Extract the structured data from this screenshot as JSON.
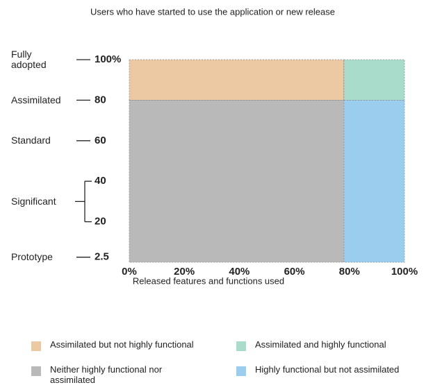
{
  "chart_data": {
    "type": "region",
    "title": "Users who have started to use the application or new release",
    "xlabel": "Released features and functions used",
    "xlim": [
      0,
      100
    ],
    "ylim": [
      0,
      100
    ],
    "xticks": [
      {
        "value": 0,
        "label": "0%"
      },
      {
        "value": 20,
        "label": "20%"
      },
      {
        "value": 40,
        "label": "40%"
      },
      {
        "value": 60,
        "label": "60%"
      },
      {
        "value": 80,
        "label": "80%"
      },
      {
        "value": 100,
        "label": "100%"
      }
    ],
    "yticks": [
      2.5,
      20,
      40,
      60,
      80,
      {
        "value": 100,
        "label": "100%"
      }
    ],
    "levels": [
      {
        "label": "Fully adopted",
        "at": [
          100
        ]
      },
      {
        "label": "Assimilated",
        "at": [
          80
        ]
      },
      {
        "label": "Standard",
        "at": [
          60
        ]
      },
      {
        "label": "Significant",
        "at": [
          20,
          40
        ]
      },
      {
        "label": "Prototype",
        "at": [
          2.5
        ]
      }
    ],
    "regions": [
      {
        "name": "Assimilated but not highly functional",
        "color": "#ecc9a3",
        "x": [
          0,
          78
        ],
        "y": [
          80,
          100
        ]
      },
      {
        "name": "Assimilated and highly functional",
        "color": "#a9dccb",
        "x": [
          78,
          100
        ],
        "y": [
          80,
          100
        ]
      },
      {
        "name": "Neither highly functional nor assimilated",
        "color": "#b9b9b9",
        "x": [
          0,
          78
        ],
        "y": [
          0,
          80
        ]
      },
      {
        "name": "Highly functional but not assimilated",
        "color": "#9bcdee",
        "x": [
          78,
          100
        ],
        "y": [
          0,
          80
        ]
      }
    ]
  }
}
